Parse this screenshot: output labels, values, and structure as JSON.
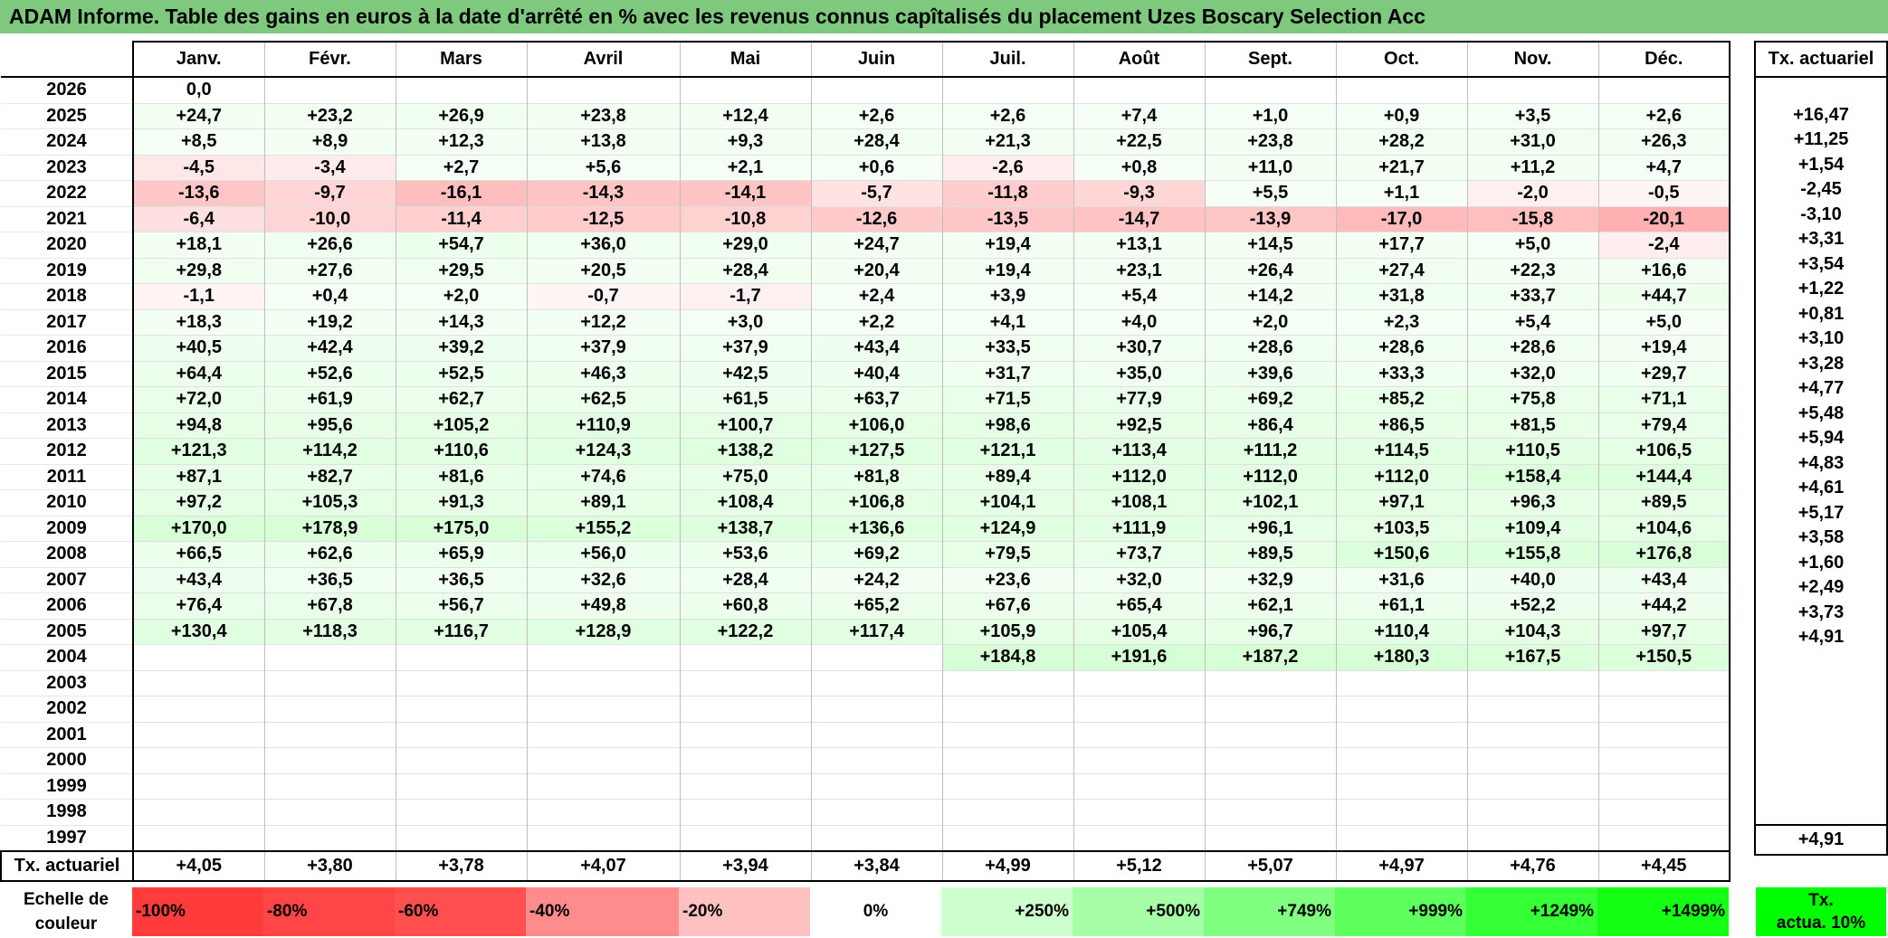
{
  "title": "ADAM Informe. Table des gains en euros à la date d'arrêté en % avec les revenus connus capîtalisés du placement Uzes Boscary Selection Acc",
  "months": [
    "Janv.",
    "Févr.",
    "Mars",
    "Avril",
    "Mai",
    "Juin",
    "Juil.",
    "Août",
    "Sept.",
    "Oct.",
    "Nov.",
    "Déc."
  ],
  "side_header": "Tx. actuariel",
  "rows": [
    {
      "year": "2026",
      "cells": [
        "0,0",
        "",
        "",
        "",
        "",
        "",
        "",
        "",
        "",
        "",
        "",
        ""
      ],
      "tx": ""
    },
    {
      "year": "2025",
      "cells": [
        "+24,7",
        "+23,2",
        "+26,9",
        "+23,8",
        "+12,4",
        "+2,6",
        "+2,6",
        "+7,4",
        "+1,0",
        "+0,9",
        "+3,5",
        "+2,6"
      ],
      "tx": "+16,47"
    },
    {
      "year": "2024",
      "cells": [
        "+8,5",
        "+8,9",
        "+12,3",
        "+13,8",
        "+9,3",
        "+28,4",
        "+21,3",
        "+22,5",
        "+23,8",
        "+28,2",
        "+31,0",
        "+26,3"
      ],
      "tx": "+11,25"
    },
    {
      "year": "2023",
      "cells": [
        "-4,5",
        "-3,4",
        "+2,7",
        "+5,6",
        "+2,1",
        "+0,6",
        "-2,6",
        "+0,8",
        "+11,0",
        "+21,7",
        "+11,2",
        "+4,7"
      ],
      "tx": "+1,54"
    },
    {
      "year": "2022",
      "cells": [
        "-13,6",
        "-9,7",
        "-16,1",
        "-14,3",
        "-14,1",
        "-5,7",
        "-11,8",
        "-9,3",
        "+5,5",
        "+1,1",
        "-2,0",
        "-0,5"
      ],
      "tx": "-2,45"
    },
    {
      "year": "2021",
      "cells": [
        "-6,4",
        "-10,0",
        "-11,4",
        "-12,5",
        "-10,8",
        "-12,6",
        "-13,5",
        "-14,7",
        "-13,9",
        "-17,0",
        "-15,8",
        "-20,1"
      ],
      "tx": "-3,10"
    },
    {
      "year": "2020",
      "cells": [
        "+18,1",
        "+26,6",
        "+54,7",
        "+36,0",
        "+29,0",
        "+24,7",
        "+19,4",
        "+13,1",
        "+14,5",
        "+17,7",
        "+5,0",
        "-2,4"
      ],
      "tx": "+3,31"
    },
    {
      "year": "2019",
      "cells": [
        "+29,8",
        "+27,6",
        "+29,5",
        "+20,5",
        "+28,4",
        "+20,4",
        "+19,4",
        "+23,1",
        "+26,4",
        "+27,4",
        "+22,3",
        "+16,6"
      ],
      "tx": "+3,54"
    },
    {
      "year": "2018",
      "cells": [
        "-1,1",
        "+0,4",
        "+2,0",
        "-0,7",
        "-1,7",
        "+2,4",
        "+3,9",
        "+5,4",
        "+14,2",
        "+31,8",
        "+33,7",
        "+44,7"
      ],
      "tx": "+1,22"
    },
    {
      "year": "2017",
      "cells": [
        "+18,3",
        "+19,2",
        "+14,3",
        "+12,2",
        "+3,0",
        "+2,2",
        "+4,1",
        "+4,0",
        "+2,0",
        "+2,3",
        "+5,4",
        "+5,0"
      ],
      "tx": "+0,81"
    },
    {
      "year": "2016",
      "cells": [
        "+40,5",
        "+42,4",
        "+39,2",
        "+37,9",
        "+37,9",
        "+43,4",
        "+33,5",
        "+30,7",
        "+28,6",
        "+28,6",
        "+28,6",
        "+19,4"
      ],
      "tx": "+3,10"
    },
    {
      "year": "2015",
      "cells": [
        "+64,4",
        "+52,6",
        "+52,5",
        "+46,3",
        "+42,5",
        "+40,4",
        "+31,7",
        "+35,0",
        "+39,6",
        "+33,3",
        "+32,0",
        "+29,7"
      ],
      "tx": "+3,28"
    },
    {
      "year": "2014",
      "cells": [
        "+72,0",
        "+61,9",
        "+62,7",
        "+62,5",
        "+61,5",
        "+63,7",
        "+71,5",
        "+77,9",
        "+69,2",
        "+85,2",
        "+75,8",
        "+71,1"
      ],
      "tx": "+4,77"
    },
    {
      "year": "2013",
      "cells": [
        "+94,8",
        "+95,6",
        "+105,2",
        "+110,9",
        "+100,7",
        "+106,0",
        "+98,6",
        "+92,5",
        "+86,4",
        "+86,5",
        "+81,5",
        "+79,4"
      ],
      "tx": "+5,48"
    },
    {
      "year": "2012",
      "cells": [
        "+121,3",
        "+114,2",
        "+110,6",
        "+124,3",
        "+138,2",
        "+127,5",
        "+121,1",
        "+113,4",
        "+111,2",
        "+114,5",
        "+110,5",
        "+106,5"
      ],
      "tx": "+5,94"
    },
    {
      "year": "2011",
      "cells": [
        "+87,1",
        "+82,7",
        "+81,6",
        "+74,6",
        "+75,0",
        "+81,8",
        "+89,4",
        "+112,0",
        "+112,0",
        "+112,0",
        "+158,4",
        "+144,4"
      ],
      "tx": "+4,83"
    },
    {
      "year": "2010",
      "cells": [
        "+97,2",
        "+105,3",
        "+91,3",
        "+89,1",
        "+108,4",
        "+106,8",
        "+104,1",
        "+108,1",
        "+102,1",
        "+97,1",
        "+96,3",
        "+89,5"
      ],
      "tx": "+4,61"
    },
    {
      "year": "2009",
      "cells": [
        "+170,0",
        "+178,9",
        "+175,0",
        "+155,2",
        "+138,7",
        "+136,6",
        "+124,9",
        "+111,9",
        "+96,1",
        "+103,5",
        "+109,4",
        "+104,6"
      ],
      "tx": "+5,17"
    },
    {
      "year": "2008",
      "cells": [
        "+66,5",
        "+62,6",
        "+65,9",
        "+56,0",
        "+53,6",
        "+69,2",
        "+79,5",
        "+73,7",
        "+89,5",
        "+150,6",
        "+155,8",
        "+176,8"
      ],
      "tx": "+3,58"
    },
    {
      "year": "2007",
      "cells": [
        "+43,4",
        "+36,5",
        "+36,5",
        "+32,6",
        "+28,4",
        "+24,2",
        "+23,6",
        "+32,0",
        "+32,9",
        "+31,6",
        "+40,0",
        "+43,4"
      ],
      "tx": "+1,60"
    },
    {
      "year": "2006",
      "cells": [
        "+76,4",
        "+67,8",
        "+56,7",
        "+49,8",
        "+60,8",
        "+65,2",
        "+67,6",
        "+65,4",
        "+62,1",
        "+61,1",
        "+52,2",
        "+44,2"
      ],
      "tx": "+2,49"
    },
    {
      "year": "2005",
      "cells": [
        "+130,4",
        "+118,3",
        "+116,7",
        "+128,9",
        "+122,2",
        "+117,4",
        "+105,9",
        "+105,4",
        "+96,7",
        "+110,4",
        "+104,3",
        "+97,7"
      ],
      "tx": "+3,73"
    },
    {
      "year": "2004",
      "cells": [
        "",
        "",
        "",
        "",
        "",
        "",
        "+184,8",
        "+191,6",
        "+187,2",
        "+180,3",
        "+167,5",
        "+150,5"
      ],
      "tx": "+4,91"
    },
    {
      "year": "2003",
      "cells": [
        "",
        "",
        "",
        "",
        "",
        "",
        "",
        "",
        "",
        "",
        "",
        ""
      ],
      "tx": ""
    },
    {
      "year": "2002",
      "cells": [
        "",
        "",
        "",
        "",
        "",
        "",
        "",
        "",
        "",
        "",
        "",
        ""
      ],
      "tx": ""
    },
    {
      "year": "2001",
      "cells": [
        "",
        "",
        "",
        "",
        "",
        "",
        "",
        "",
        "",
        "",
        "",
        ""
      ],
      "tx": ""
    },
    {
      "year": "2000",
      "cells": [
        "",
        "",
        "",
        "",
        "",
        "",
        "",
        "",
        "",
        "",
        "",
        ""
      ],
      "tx": ""
    },
    {
      "year": "1999",
      "cells": [
        "",
        "",
        "",
        "",
        "",
        "",
        "",
        "",
        "",
        "",
        "",
        ""
      ],
      "tx": ""
    },
    {
      "year": "1998",
      "cells": [
        "",
        "",
        "",
        "",
        "",
        "",
        "",
        "",
        "",
        "",
        "",
        ""
      ],
      "tx": ""
    },
    {
      "year": "1997",
      "cells": [
        "",
        "",
        "",
        "",
        "",
        "",
        "",
        "",
        "",
        "",
        "",
        ""
      ],
      "tx": ""
    }
  ],
  "footer": {
    "label": "Tx. actuariel",
    "values": [
      "+4,05",
      "+3,80",
      "+3,78",
      "+4,07",
      "+3,94",
      "+3,84",
      "+4,99",
      "+5,12",
      "+5,07",
      "+4,97",
      "+4,76",
      "+4,45"
    ],
    "tx": "+4,91"
  },
  "scale": {
    "label_line1": "Echelle de",
    "label_line2": "couleur",
    "items": [
      {
        "label": "-100%",
        "color": "#ff3b3b"
      },
      {
        "label": "-80%",
        "color": "#ff4545"
      },
      {
        "label": "-60%",
        "color": "#ff4f4f"
      },
      {
        "label": "-40%",
        "color": "#ff8c8c"
      },
      {
        "label": "-20%",
        "color": "#ffc0c0"
      },
      {
        "label": "0%",
        "color": "#ffffff"
      },
      {
        "label": "+250%",
        "color": "#ceffce"
      },
      {
        "label": "+500%",
        "color": "#a6ffa6"
      },
      {
        "label": "+749%",
        "color": "#80ff80"
      },
      {
        "label": "+999%",
        "color": "#5cff5c"
      },
      {
        "label": "+1249%",
        "color": "#35ff35"
      },
      {
        "label": "+1499%",
        "color": "#14ff14"
      }
    ],
    "tx_line1": "Tx.",
    "tx_line2": "actua. 10%",
    "tx_color": "#00ff00"
  }
}
